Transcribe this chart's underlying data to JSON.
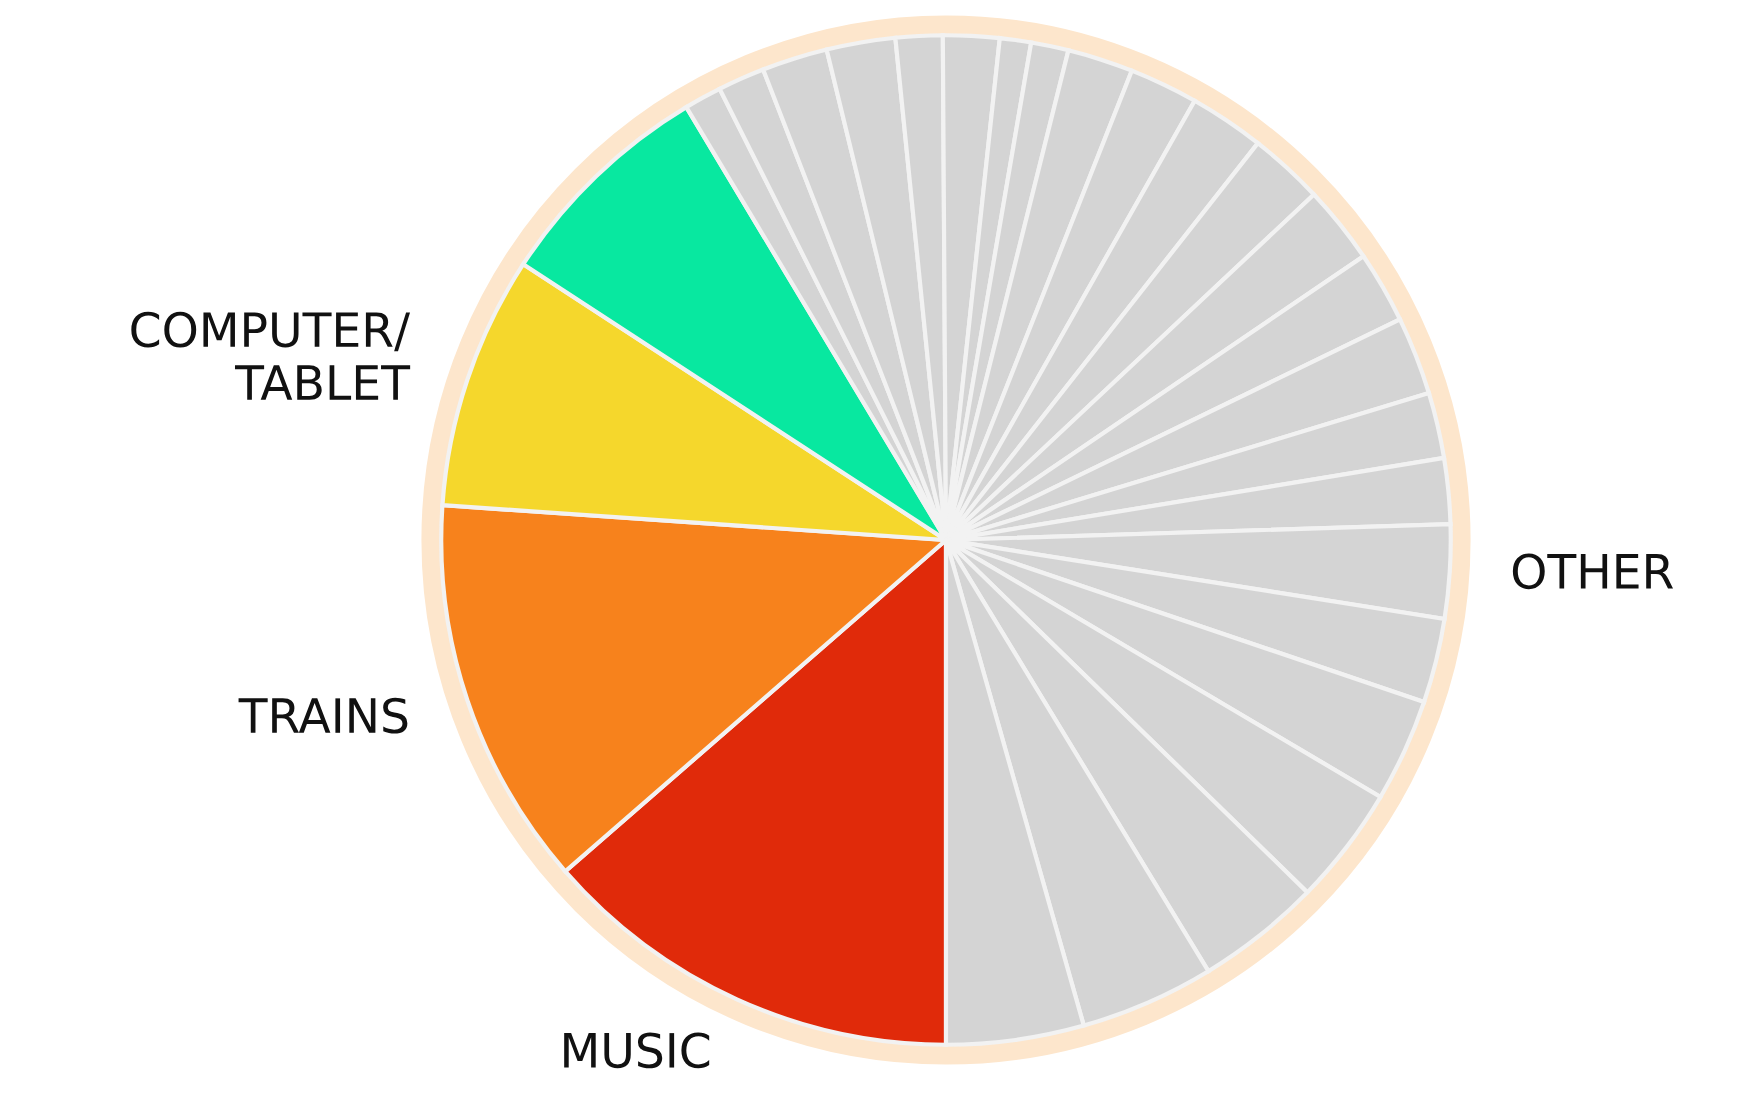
{
  "chart_data": {
    "type": "pie",
    "categories": [
      "MUSIC",
      "TRAINS",
      "COMPUTER/\nTABLET",
      null,
      null,
      null,
      null,
      null,
      null,
      null,
      null,
      null,
      null,
      null,
      null,
      null,
      null,
      null,
      null,
      null,
      null,
      "OTHER",
      null,
      null,
      null,
      null,
      null,
      null
    ],
    "values": [
      13.6,
      12.5,
      8.1,
      7.2,
      1.2,
      1.5,
      2.1,
      2.2,
      1.5,
      1.8,
      1.0,
      1.2,
      2.1,
      2.2,
      2.4,
      2.4,
      2.5,
      2.3,
      2.5,
      2.1,
      2.1,
      3.0,
      2.7,
      3.3,
      3.8,
      4.0,
      4.3,
      4.4
    ],
    "colors": [
      "#e02a0a",
      "#f7821c",
      "#f5d72c",
      "#08e8a0",
      "#d4d4d4",
      "#d4d4d4",
      "#d4d4d4",
      "#d4d4d4",
      "#d4d4d4",
      "#d4d4d4",
      "#d4d4d4",
      "#d4d4d4",
      "#d4d4d4",
      "#d4d4d4",
      "#d4d4d4",
      "#d4d4d4",
      "#d4d4d4",
      "#d4d4d4",
      "#d4d4d4",
      "#d4d4d4",
      "#d4d4d4",
      "#d4d4d4",
      "#d4d4d4",
      "#d4d4d4",
      "#d4d4d4",
      "#d4d4d4",
      "#d4d4d4",
      "#d4d4d4"
    ]
  }
}
